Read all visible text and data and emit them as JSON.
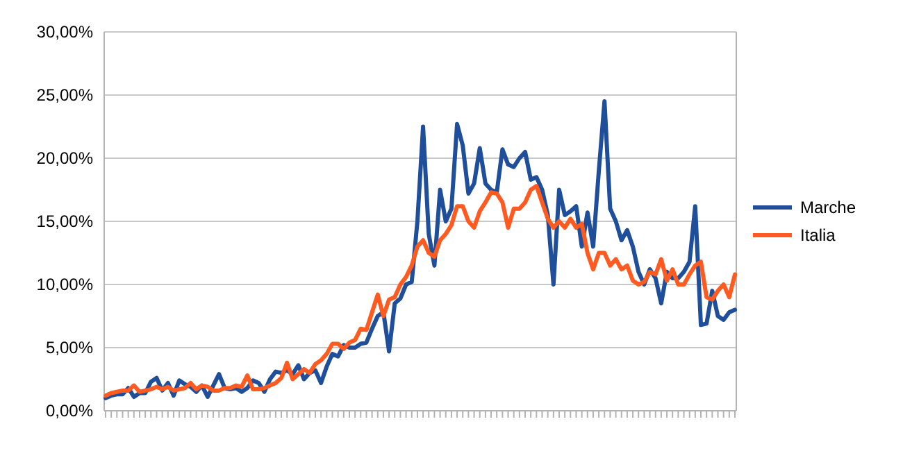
{
  "chart_data": {
    "type": "line",
    "categories": [
      null,
      null,
      null,
      null,
      null,
      null,
      null,
      null,
      null,
      null,
      null,
      null,
      null,
      null,
      null,
      null,
      null,
      null,
      null,
      null,
      null,
      null,
      null,
      null,
      null,
      null,
      null,
      null,
      null,
      null,
      null,
      null,
      null,
      null,
      null,
      null,
      null,
      null,
      null,
      null,
      null,
      null,
      null,
      null,
      null,
      null,
      null,
      null,
      null,
      null,
      null,
      null,
      null,
      null,
      null,
      null,
      null,
      null,
      null,
      null,
      null,
      null,
      null,
      null,
      null,
      null,
      null,
      null,
      null,
      null,
      null,
      null,
      null,
      null,
      null,
      null,
      null,
      null,
      null,
      null,
      null,
      null,
      null,
      null,
      null,
      null,
      null,
      null,
      null,
      null,
      null,
      null,
      null,
      null,
      null,
      null,
      null,
      null,
      null,
      null,
      null,
      null,
      null,
      null,
      null,
      null,
      null,
      null,
      null,
      null,
      null,
      null
    ],
    "series": [
      {
        "name": "Marche",
        "color": "#1f4e9a",
        "values": [
          1.0,
          1.2,
          1.3,
          1.3,
          1.8,
          1.1,
          1.4,
          1.4,
          2.3,
          2.6,
          1.6,
          2.2,
          1.2,
          2.4,
          2.1,
          1.9,
          1.5,
          2.0,
          1.1,
          2.0,
          2.9,
          1.8,
          1.7,
          1.8,
          1.5,
          1.8,
          2.4,
          2.2,
          1.5,
          2.5,
          3.1,
          3.0,
          3.2,
          2.9,
          3.6,
          2.5,
          3.0,
          3.2,
          2.2,
          3.5,
          4.5,
          4.3,
          5.2,
          5.0,
          5.0,
          5.3,
          5.4,
          6.5,
          7.5,
          7.8,
          4.7,
          8.5,
          8.9,
          10.0,
          10.2,
          15.0,
          22.5,
          14.0,
          11.5,
          17.5,
          15.0,
          16.0,
          22.7,
          21.0,
          17.2,
          18.0,
          20.8,
          18.0,
          17.5,
          17.3,
          20.7,
          19.5,
          19.3,
          20.0,
          20.5,
          18.3,
          18.5,
          17.5,
          15.5,
          10.0,
          17.5,
          15.5,
          15.8,
          16.2,
          13.0,
          15.7,
          13.0,
          19.0,
          24.5,
          16.0,
          15.0,
          13.5,
          14.3,
          13.0,
          11.0,
          10.0,
          11.2,
          10.5,
          8.5,
          11.0,
          10.5,
          10.5,
          11.0,
          11.8,
          16.2,
          6.8,
          6.9,
          9.5,
          7.5,
          7.2,
          7.8,
          8.0
        ]
      },
      {
        "name": "Italia",
        "color": "#ff5a1f",
        "values": [
          1.2,
          1.4,
          1.5,
          1.6,
          1.6,
          2.0,
          1.5,
          1.6,
          1.7,
          1.9,
          1.7,
          1.9,
          1.6,
          1.7,
          1.8,
          2.2,
          1.7,
          2.0,
          1.9,
          1.6,
          1.6,
          1.8,
          1.8,
          2.0,
          1.9,
          2.8,
          1.7,
          1.7,
          1.8,
          2.0,
          2.2,
          2.6,
          3.8,
          2.5,
          2.9,
          3.3,
          3.0,
          3.7,
          4.0,
          4.5,
          5.3,
          5.3,
          4.9,
          5.4,
          5.6,
          6.5,
          6.4,
          7.8,
          9.2,
          7.5,
          8.8,
          9.0,
          10.0,
          10.6,
          11.5,
          13.0,
          13.5,
          12.5,
          12.2,
          13.5,
          14.0,
          14.7,
          16.2,
          16.2,
          15.0,
          14.5,
          15.8,
          16.5,
          17.3,
          17.2,
          16.5,
          14.5,
          16.0,
          16.0,
          16.5,
          17.5,
          17.8,
          16.5,
          15.2,
          14.5,
          15.0,
          14.5,
          15.2,
          14.5,
          14.8,
          12.5,
          11.2,
          12.5,
          12.5,
          11.5,
          12.0,
          11.2,
          11.5,
          10.3,
          10.0,
          10.2,
          11.0,
          10.8,
          12.0,
          10.3,
          11.2,
          10.0,
          10.0,
          10.8,
          11.5,
          11.8,
          9.0,
          8.8,
          9.5,
          10.0,
          9.0,
          10.8
        ]
      }
    ],
    "ylim": [
      0,
      30
    ],
    "yticks": [
      {
        "value": 0,
        "label": "0,00%"
      },
      {
        "value": 5,
        "label": "5,00%"
      },
      {
        "value": 10,
        "label": "10,00%"
      },
      {
        "value": 15,
        "label": "15,00%"
      },
      {
        "value": 20,
        "label": "20,00%"
      },
      {
        "value": 25,
        "label": "25,00%"
      },
      {
        "value": 30,
        "label": "30,00%"
      }
    ],
    "grid": "y",
    "legend": "right",
    "marker": "none",
    "line_style": "solid"
  }
}
